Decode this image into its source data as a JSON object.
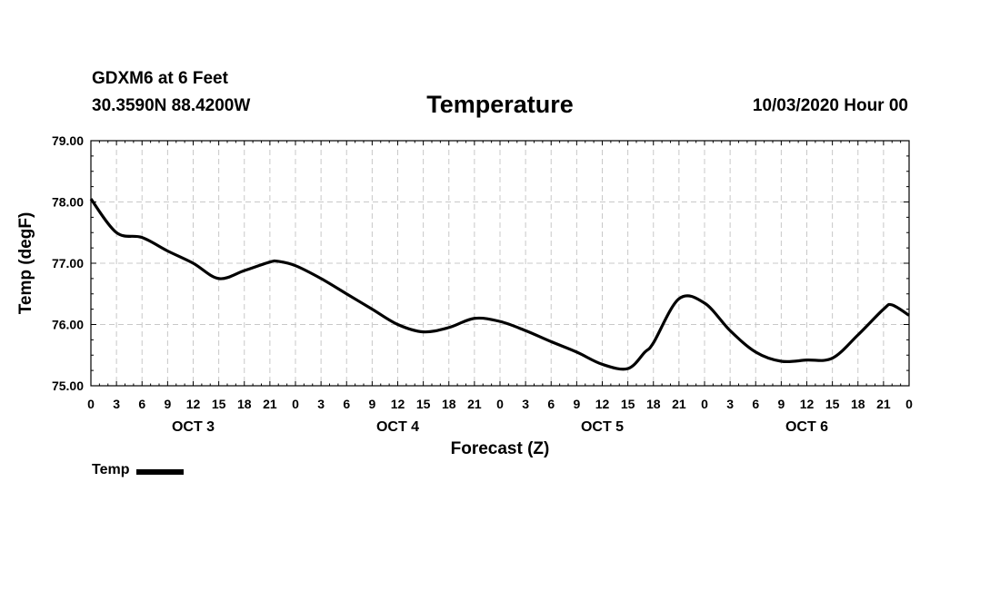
{
  "header": {
    "station": "GDXM6 at 6 Feet",
    "coords": "30.3590N 88.4200W",
    "title": "Temperature",
    "datetime": "10/03/2020 Hour 00"
  },
  "legend": {
    "label": "Temp",
    "swatch_color": "#000000"
  },
  "chart_data": {
    "type": "line",
    "title": "Temperature",
    "xlabel": "Forecast (Z)",
    "ylabel": "Temp (degF)",
    "xlim": [
      0,
      96
    ],
    "ylim": [
      75.0,
      79.0
    ],
    "yticks": [
      75.0,
      76.0,
      77.0,
      78.0,
      79.0
    ],
    "ytick_labels": [
      "75.00",
      "76.00",
      "77.00",
      "78.00",
      "79.00"
    ],
    "xtick_step": 3,
    "xtick_labels": [
      "0",
      "3",
      "6",
      "9",
      "12",
      "15",
      "18",
      "21",
      "0",
      "3",
      "6",
      "9",
      "12",
      "15",
      "18",
      "21",
      "0",
      "3",
      "6",
      "9",
      "12",
      "15",
      "18",
      "21",
      "0",
      "3",
      "6",
      "9",
      "12",
      "15",
      "18",
      "21",
      "0"
    ],
    "day_labels": [
      {
        "label": "OCT 3",
        "center_hour": 12
      },
      {
        "label": "OCT 4",
        "center_hour": 36
      },
      {
        "label": "OCT 5",
        "center_hour": 60
      },
      {
        "label": "OCT 6",
        "center_hour": 84
      }
    ],
    "grid": true,
    "legend_position": "bottom-left",
    "series": [
      {
        "name": "Temp",
        "color": "#000000",
        "x": [
          0,
          3,
          6,
          9,
          12,
          15,
          18,
          21,
          22,
          24,
          27,
          30,
          33,
          36,
          39,
          42,
          45,
          48,
          51,
          54,
          57,
          60,
          63,
          65,
          66,
          69,
          72,
          75,
          78,
          81,
          84,
          87,
          90,
          93,
          94,
          96
        ],
        "y": [
          78.05,
          77.5,
          77.42,
          77.2,
          77.0,
          76.75,
          76.88,
          77.02,
          77.03,
          76.96,
          76.75,
          76.5,
          76.25,
          76.0,
          75.88,
          75.95,
          76.1,
          76.05,
          75.9,
          75.72,
          75.55,
          75.35,
          75.28,
          75.55,
          75.7,
          76.42,
          76.35,
          75.9,
          75.55,
          75.4,
          75.42,
          75.45,
          75.83,
          76.25,
          76.32,
          76.15
        ]
      }
    ]
  }
}
